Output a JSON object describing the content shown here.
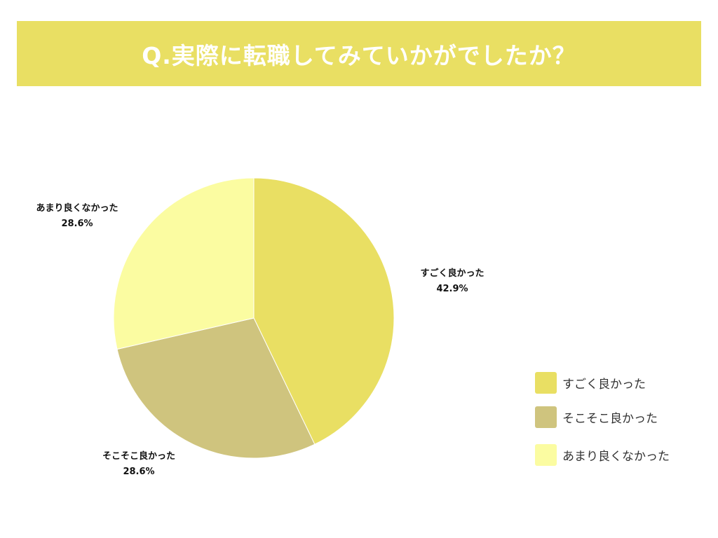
{
  "title": "Q.実際に転職してみていかがでしたか？",
  "colors": {
    "title_bg": "#e9df63",
    "title_text": "#ffffff"
  },
  "chart_data": {
    "type": "pie",
    "title": "Q.実際に転職してみていかがでしたか？",
    "slices": [
      {
        "label": "すごく良かった",
        "value": 42.9,
        "percent_label": "42.9%",
        "color": "#e9df63"
      },
      {
        "label": "そこそこ良かった",
        "value": 28.6,
        "percent_label": "28.6%",
        "color": "#cfc47e"
      },
      {
        "label": "あまり良くなかった",
        "value": 28.6,
        "percent_label": "28.6%",
        "color": "#fbfca1"
      }
    ],
    "legend_position": "bottom-right"
  }
}
